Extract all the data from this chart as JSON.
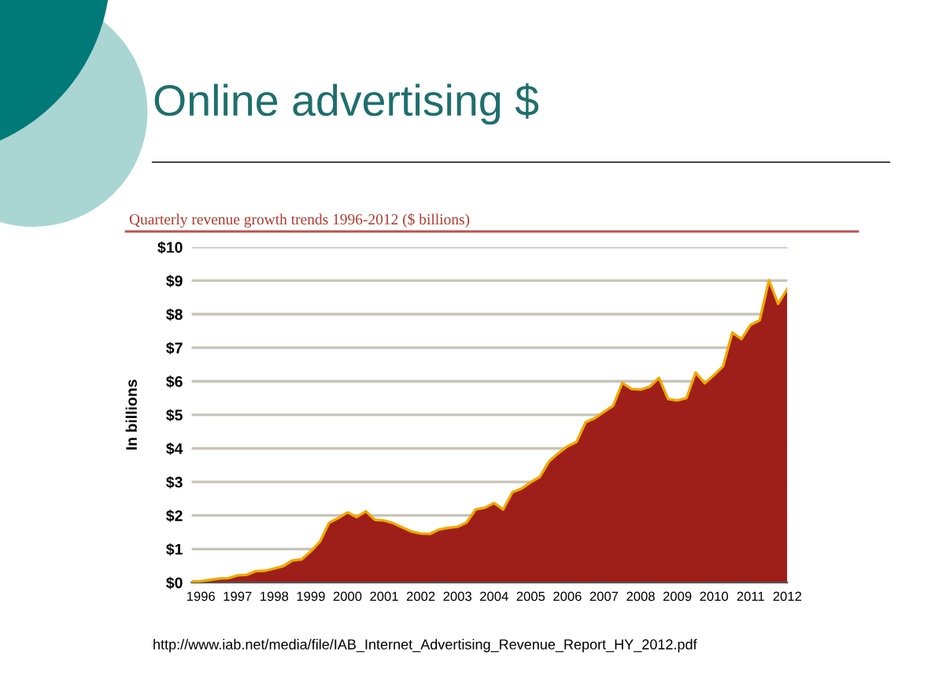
{
  "chart_data": {
    "type": "area",
    "title": "Online advertising $",
    "subtitle": "Quarterly revenue growth trends 1996-2012 ($ billions)",
    "ylabel": "In billions",
    "annotations": [
      "http://www.iab.net/media/file/IAB_Internet_Advertising_Revenue_Report_HY_2012.pdf"
    ],
    "x": [
      1996,
      1996.25,
      1996.5,
      1996.75,
      1997,
      1997.25,
      1997.5,
      1997.75,
      1998,
      1998.25,
      1998.5,
      1998.75,
      1999,
      1999.25,
      1999.5,
      1999.75,
      2000,
      2000.25,
      2000.5,
      2000.75,
      2001,
      2001.25,
      2001.5,
      2001.75,
      2002,
      2002.25,
      2002.5,
      2002.75,
      2003,
      2003.25,
      2003.5,
      2003.75,
      2004,
      2004.25,
      2004.5,
      2004.75,
      2005,
      2005.25,
      2005.5,
      2005.75,
      2006,
      2006.25,
      2006.5,
      2006.75,
      2007,
      2007.25,
      2007.5,
      2007.75,
      2008,
      2008.25,
      2008.5,
      2008.75,
      2009,
      2009.25,
      2009.5,
      2009.75,
      2010,
      2010.25,
      2010.5,
      2010.75,
      2011,
      2011.25,
      2011.5,
      2011.75,
      2012,
      2012.25
    ],
    "series": [
      {
        "color": "#9e1f1a",
        "values": [
          0.03,
          0.04,
          0.08,
          0.12,
          0.13,
          0.21,
          0.23,
          0.34,
          0.35,
          0.42,
          0.49,
          0.66,
          0.69,
          0.93,
          1.22,
          1.78,
          1.92,
          2.09,
          1.95,
          2.12,
          1.87,
          1.85,
          1.77,
          1.64,
          1.52,
          1.46,
          1.45,
          1.58,
          1.63,
          1.66,
          1.79,
          2.18,
          2.23,
          2.37,
          2.18,
          2.69,
          2.8,
          2.99,
          3.15,
          3.61,
          3.85,
          4.06,
          4.19,
          4.78,
          4.9,
          5.09,
          5.27,
          5.95,
          5.77,
          5.75,
          5.84,
          6.1,
          5.47,
          5.43,
          5.5,
          6.26,
          5.94,
          6.18,
          6.45,
          7.45,
          7.26,
          7.68,
          7.82,
          9.01,
          8.31,
          8.75
        ]
      }
    ],
    "ylim": [
      0,
      10
    ],
    "yticks": [
      {
        "value": 0,
        "label": "$0"
      },
      {
        "value": 1,
        "label": "$1"
      },
      {
        "value": 2,
        "label": "$2"
      },
      {
        "value": 3,
        "label": "$3"
      },
      {
        "value": 4,
        "label": "$4"
      },
      {
        "value": 5,
        "label": "$5"
      },
      {
        "value": 6,
        "label": "$6"
      },
      {
        "value": 7,
        "label": "$7"
      },
      {
        "value": 8,
        "label": "$8"
      },
      {
        "value": 9,
        "label": "$9"
      },
      {
        "value": 10,
        "label": "$10"
      }
    ],
    "xlim": [
      1996,
      2012.25
    ],
    "xticks": [
      {
        "value": 1996.25,
        "label": "1996"
      },
      {
        "value": 1997.25,
        "label": "1997"
      },
      {
        "value": 1998.25,
        "label": "1998"
      },
      {
        "value": 1999.25,
        "label": "1999"
      },
      {
        "value": 2000.25,
        "label": "2000"
      },
      {
        "value": 2001.25,
        "label": "2001"
      },
      {
        "value": 2002.25,
        "label": "2002"
      },
      {
        "value": 2003.25,
        "label": "2003"
      },
      {
        "value": 2004.25,
        "label": "2004"
      },
      {
        "value": 2005.25,
        "label": "2005"
      },
      {
        "value": 2006.25,
        "label": "2006"
      },
      {
        "value": 2007.25,
        "label": "2007"
      },
      {
        "value": 2008.25,
        "label": "2008"
      },
      {
        "value": 2009.25,
        "label": "2009"
      },
      {
        "value": 2010.25,
        "label": "2010"
      },
      {
        "value": 2011.25,
        "label": "2011"
      },
      {
        "value": 2012.25,
        "label": "2012"
      }
    ],
    "grid": "y",
    "legend": false
  }
}
